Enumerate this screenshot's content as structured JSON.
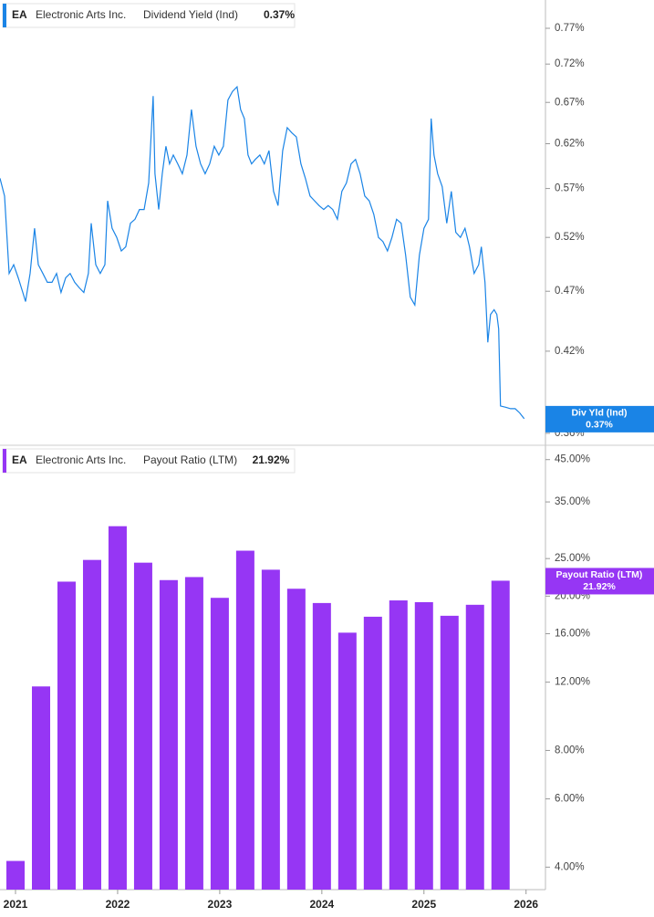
{
  "chart_data": [
    {
      "type": "line",
      "ticker": "EA",
      "company": "Electronic Arts Inc.",
      "series": [
        {
          "name": "Dividend Yield (Ind)",
          "badge": "Div Yld (Ind)",
          "last_label": "0.37%",
          "color": "#1a84e6",
          "x": [
            2020.848,
            2020.893,
            2020.937,
            2020.982,
            2021.027,
            2021.071,
            2021.098,
            2021.143,
            2021.187,
            2021.223,
            2021.268,
            2021.312,
            2021.357,
            2021.402,
            2021.446,
            2021.491,
            2021.535,
            2021.58,
            2021.625,
            2021.669,
            2021.714,
            2021.741,
            2021.786,
            2021.83,
            2021.875,
            2021.902,
            2021.946,
            2021.991,
            2022.036,
            2022.08,
            2022.125,
            2022.17,
            2022.214,
            2022.259,
            2022.304,
            2022.348,
            2022.366,
            2022.402,
            2022.437,
            2022.473,
            2022.509,
            2022.545,
            2022.589,
            2022.634,
            2022.679,
            2022.723,
            2022.768,
            2022.812,
            2022.857,
            2022.902,
            2022.946,
            2022.991,
            2023.036,
            2023.08,
            2023.125,
            2023.17,
            2023.205,
            2023.241,
            2023.277,
            2023.312,
            2023.348,
            2023.393,
            2023.437,
            2023.482,
            2023.527,
            2023.571,
            2023.616,
            2023.661,
            2023.705,
            2023.75,
            2023.795,
            2023.839,
            2023.884,
            2023.929,
            2023.973,
            2024.018,
            2024.062,
            2024.107,
            2024.152,
            2024.196,
            2024.241,
            2024.286,
            2024.33,
            2024.375,
            2024.42,
            2024.464,
            2024.509,
            2024.554,
            2024.598,
            2024.643,
            2024.687,
            2024.732,
            2024.777,
            2024.821,
            2024.866,
            2024.911,
            2024.955,
            2025.0,
            2025.045,
            2025.071,
            2025.098,
            2025.134,
            2025.179,
            2025.223,
            2025.268,
            2025.312,
            2025.357,
            2025.402,
            2025.446,
            2025.491,
            2025.536,
            2025.562,
            2025.598,
            2025.625,
            2025.652,
            2025.687,
            2025.714,
            2025.732,
            2025.75,
            2025.804,
            2025.848,
            2025.893,
            2025.938,
            2025.982
          ],
          "values": [
            0.581,
            0.562,
            0.486,
            0.494,
            0.482,
            0.469,
            0.461,
            0.486,
            0.529,
            0.494,
            0.486,
            0.478,
            0.478,
            0.486,
            0.469,
            0.482,
            0.486,
            0.478,
            0.473,
            0.469,
            0.486,
            0.534,
            0.494,
            0.486,
            0.494,
            0.557,
            0.529,
            0.52,
            0.507,
            0.511,
            0.534,
            0.538,
            0.548,
            0.548,
            0.576,
            0.678,
            0.586,
            0.548,
            0.586,
            0.617,
            0.597,
            0.607,
            0.597,
            0.586,
            0.607,
            0.661,
            0.617,
            0.597,
            0.586,
            0.597,
            0.617,
            0.607,
            0.617,
            0.673,
            0.684,
            0.69,
            0.661,
            0.65,
            0.607,
            0.597,
            0.602,
            0.607,
            0.597,
            0.612,
            0.567,
            0.552,
            0.612,
            0.639,
            0.633,
            0.628,
            0.597,
            0.581,
            0.562,
            0.557,
            0.552,
            0.548,
            0.552,
            0.548,
            0.538,
            0.567,
            0.576,
            0.597,
            0.602,
            0.586,
            0.562,
            0.557,
            0.543,
            0.52,
            0.516,
            0.507,
            0.52,
            0.538,
            0.534,
            0.503,
            0.465,
            0.458,
            0.503,
            0.529,
            0.538,
            0.65,
            0.607,
            0.586,
            0.572,
            0.534,
            0.567,
            0.525,
            0.52,
            0.529,
            0.511,
            0.486,
            0.494,
            0.511,
            0.478,
            0.427,
            0.45,
            0.454,
            0.45,
            0.438,
            0.379,
            0.378,
            0.377,
            0.377,
            0.374,
            0.37
          ]
        }
      ],
      "log_scale": true,
      "ylim": [
        0.352,
        0.812
      ],
      "xlim": [
        2020.848,
        2026.19
      ],
      "yticks": [
        {
          "value": 0.36,
          "label": "0.36%"
        },
        {
          "value": 0.42,
          "label": "0.42%"
        },
        {
          "value": 0.47,
          "label": "0.47%"
        },
        {
          "value": 0.52,
          "label": "0.52%"
        },
        {
          "value": 0.57,
          "label": "0.57%"
        },
        {
          "value": 0.62,
          "label": "0.62%"
        },
        {
          "value": 0.67,
          "label": "0.67%"
        },
        {
          "value": 0.72,
          "label": "0.72%"
        },
        {
          "value": 0.77,
          "label": "0.77%"
        }
      ]
    },
    {
      "type": "bar",
      "ticker": "EA",
      "company": "Electronic Arts Inc.",
      "series": [
        {
          "name": "Payout Ratio (LTM)",
          "last_label": "21.92%",
          "color": "#9636f4",
          "x": [
            2021.0,
            2021.25,
            2021.5,
            2021.75,
            2022.0,
            2022.25,
            2022.5,
            2022.75,
            2023.0,
            2023.25,
            2023.5,
            2023.75,
            2024.0,
            2024.25,
            2024.5,
            2024.75,
            2025.0,
            2025.25,
            2025.5,
            2025.75
          ],
          "values": [
            4.15,
            11.7,
            21.8,
            24.8,
            30.3,
            24.4,
            22.0,
            22.4,
            19.8,
            26.2,
            23.4,
            20.9,
            19.2,
            16.1,
            17.7,
            19.5,
            19.3,
            17.8,
            19.0,
            21.92
          ]
        }
      ],
      "log_scale": true,
      "ylim": [
        3.5,
        49
      ],
      "xlim": [
        2020.848,
        2026.19
      ],
      "yticks": [
        {
          "value": 4,
          "label": "4.00%"
        },
        {
          "value": 6,
          "label": "6.00%"
        },
        {
          "value": 8,
          "label": "8.00%"
        },
        {
          "value": 12,
          "label": "12.00%"
        },
        {
          "value": 16,
          "label": "16.00%"
        },
        {
          "value": 20,
          "label": "20.00%"
        },
        {
          "value": 25,
          "label": "25.00%"
        },
        {
          "value": 35,
          "label": "35.00%"
        },
        {
          "value": 45,
          "label": "45.00%"
        }
      ],
      "xticks": [
        2021,
        2022,
        2023,
        2024,
        2025,
        2026
      ]
    }
  ]
}
